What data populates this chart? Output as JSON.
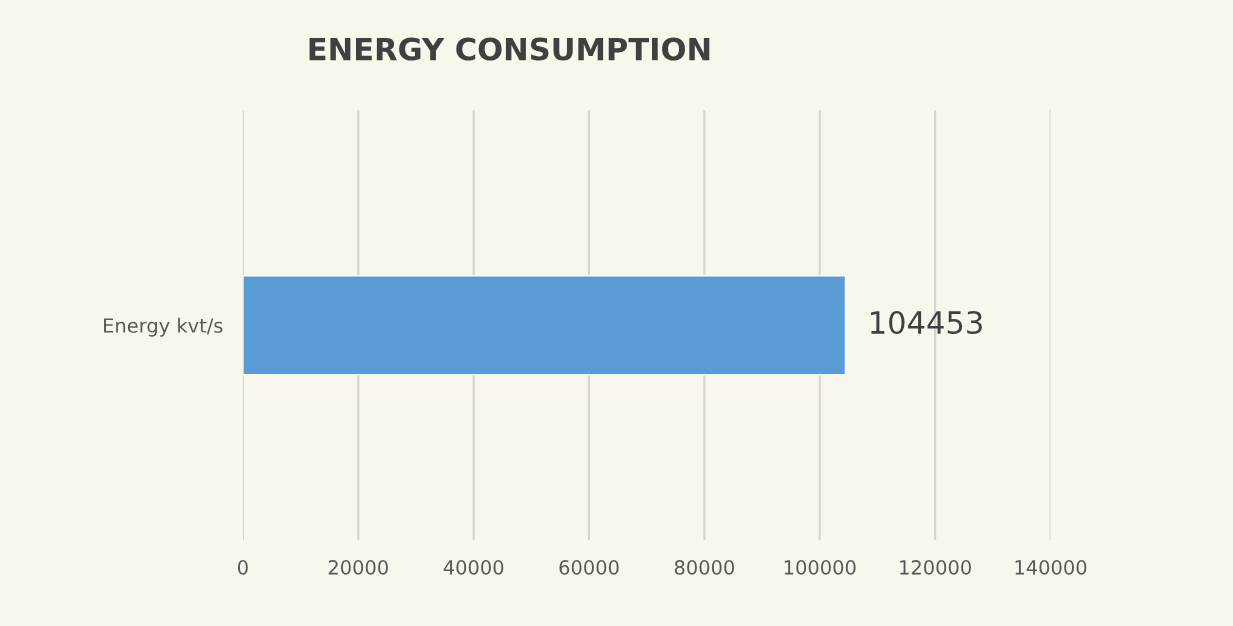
{
  "chart_data": {
    "type": "bar",
    "orientation": "horizontal",
    "title": "ENERGY CONSUMPTION",
    "categories": [
      "Energy kvt/s"
    ],
    "values": [
      104453
    ],
    "color": "#5b9bd5",
    "xlim": [
      0,
      140000
    ],
    "xticks": [
      0,
      20000,
      40000,
      60000,
      80000,
      100000,
      120000,
      140000
    ],
    "grid": "x",
    "data_labels": true
  }
}
